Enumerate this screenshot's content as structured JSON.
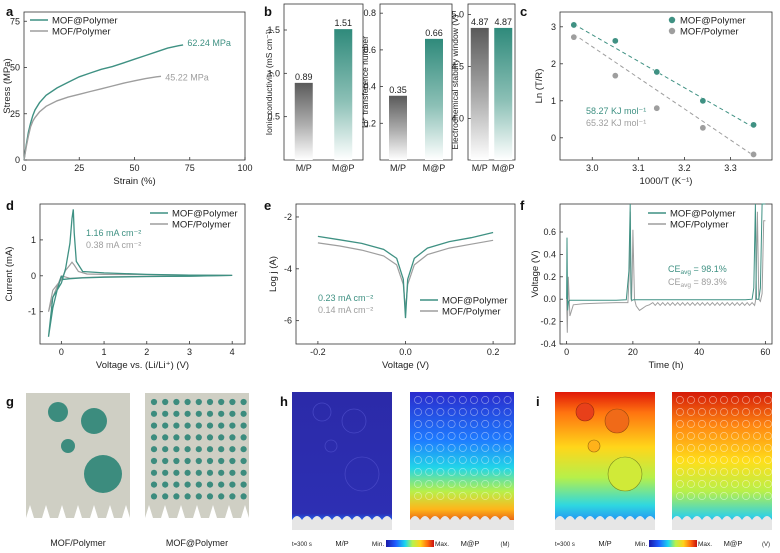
{
  "colors": {
    "teal": "#3f9183",
    "gray": "#9e9e9e",
    "darkgray": "#666666"
  },
  "labels": {
    "a": "a",
    "b": "b",
    "c": "c",
    "d": "d",
    "e": "e",
    "f": "f",
    "g": "g",
    "h": "h",
    "i": "i"
  },
  "chart_data": [
    {
      "id": "a",
      "type": "line",
      "xlabel": "Strain (%)",
      "ylabel": "Stress (MPa)",
      "xlim": [
        0,
        100
      ],
      "ylim": [
        0,
        80
      ],
      "xticks": [
        "0",
        "25",
        "50",
        "75",
        "100"
      ],
      "yticks": [
        "0",
        "25",
        "50",
        "75"
      ],
      "series": [
        {
          "name": "MOF@Polymer",
          "color": "#3f9183",
          "end_label": "62.24 MPa",
          "x": [
            0,
            1,
            2,
            3,
            4,
            5,
            7,
            10,
            15,
            20,
            25,
            30,
            35,
            40,
            45,
            50,
            55,
            60,
            65,
            70,
            72
          ],
          "y": [
            0,
            8,
            15,
            20,
            24,
            27,
            31,
            35,
            39,
            42,
            45,
            47,
            49,
            50.5,
            52.5,
            54.5,
            56.5,
            58.5,
            60.5,
            61.8,
            62.24
          ]
        },
        {
          "name": "MOF/Polymer",
          "color": "#9e9e9e",
          "end_label": "45.22 MPa",
          "x": [
            0,
            1,
            2,
            3,
            4,
            5,
            7,
            10,
            15,
            20,
            25,
            30,
            35,
            40,
            45,
            50,
            55,
            60,
            62
          ],
          "y": [
            0,
            7,
            13,
            18,
            21,
            23,
            26,
            29,
            32,
            34,
            35.5,
            37,
            38.5,
            40,
            41.5,
            42.8,
            44,
            45,
            45.22
          ]
        }
      ]
    },
    {
      "id": "b",
      "type": "bar",
      "categories": [
        "M/P",
        "M@P"
      ],
      "panels": [
        {
          "ylabel": "Ionic conductivity (mS cm⁻¹)",
          "ylim": [
            0,
            1.8
          ],
          "yticks": [
            "0.5",
            "1.0",
            "1.5"
          ],
          "values": [
            0.89,
            1.51
          ],
          "value_labels": [
            "0.89",
            "1.51"
          ]
        },
        {
          "ylabel": "Li⁺ transference number",
          "ylim": [
            0,
            0.85
          ],
          "yticks": [
            "0.2",
            "0.4",
            "0.6",
            "0.8"
          ],
          "values": [
            0.35,
            0.66
          ],
          "value_labels": [
            "0.35",
            "0.66"
          ]
        },
        {
          "ylabel": "Electrochemical stability window (V)",
          "ylim": [
            3.6,
            5.1
          ],
          "yticks": [
            "4.0",
            "4.5",
            "5.0"
          ],
          "values": [
            4.87,
            4.87
          ],
          "value_labels": [
            "4.87",
            "4.87"
          ]
        }
      ]
    },
    {
      "id": "c",
      "type": "scatter",
      "xlabel": "1000/T (K⁻¹)",
      "ylabel": "Ln (T/R)",
      "xlim": [
        2.93,
        3.39
      ],
      "ylim": [
        -0.6,
        3.4
      ],
      "xticks": [
        "3.0",
        "3.1",
        "3.2",
        "3.3"
      ],
      "yticks": [
        "0",
        "1",
        "2",
        "3"
      ],
      "series": [
        {
          "name": "MOF@Polymer",
          "color": "#3f9183",
          "x": [
            2.96,
            3.05,
            3.14,
            3.24,
            3.35
          ],
          "y": [
            3.05,
            2.62,
            1.78,
            1.0,
            0.35
          ],
          "fit": [
            [
              2.96,
              3.07
            ],
            [
              3.35,
              0.28
            ]
          ]
        },
        {
          "name": "MOF/Polymer",
          "color": "#9e9e9e",
          "x": [
            2.96,
            3.05,
            3.14,
            3.24,
            3.35
          ],
          "y": [
            2.72,
            1.68,
            0.8,
            0.27,
            -0.45
          ],
          "fit": [
            [
              2.96,
              2.8
            ],
            [
              3.35,
              -0.48
            ]
          ]
        }
      ],
      "annotations": [
        "58.27 KJ mol⁻¹",
        "65.32 KJ mol⁻¹"
      ]
    },
    {
      "id": "d",
      "type": "line",
      "xlabel": "Voltage vs. (Li/Li⁺) (V)",
      "ylabel": "Current (mA)",
      "xlim": [
        -0.5,
        4.3
      ],
      "ylim": [
        -1.9,
        2.0
      ],
      "xticks": [
        "0",
        "1",
        "2",
        "3",
        "4"
      ],
      "yticks": [
        "-1",
        "0",
        "1"
      ],
      "series": [
        {
          "name": "MOF@Polymer",
          "color": "#3f9183",
          "x": [
            0,
            -0.1,
            -0.2,
            -0.3,
            -0.2,
            0,
            0.1,
            0.2,
            0.25,
            0.28,
            0.3,
            0.35,
            0.5,
            1,
            2,
            3,
            4,
            3,
            2,
            1,
            0.5,
            0.2,
            0.05,
            0
          ],
          "y": [
            0,
            -0.4,
            -0.9,
            -1.7,
            -0.6,
            -0.2,
            0.2,
            0.9,
            1.6,
            1.85,
            1.2,
            0.4,
            0.12,
            0.08,
            0.04,
            0.02,
            0.01,
            -0.01,
            -0.02,
            -0.04,
            -0.06,
            -0.08,
            -0.1,
            0
          ]
        },
        {
          "name": "MOF/Polymer",
          "color": "#9e9e9e",
          "x": [
            0,
            -0.1,
            -0.2,
            -0.3,
            -0.2,
            0,
            0.1,
            0.2,
            0.25,
            0.3,
            0.4,
            0.6,
            1,
            2,
            3,
            4,
            3,
            2,
            1,
            0.5,
            0.2,
            0
          ],
          "y": [
            0,
            -0.3,
            -0.6,
            -1.0,
            -0.4,
            -0.1,
            0.15,
            0.3,
            0.38,
            0.3,
            0.12,
            0.05,
            0.04,
            0.03,
            0.02,
            0.01,
            -0.01,
            -0.02,
            -0.03,
            -0.05,
            -0.07,
            0
          ]
        }
      ],
      "annotations": [
        "1.16 mA cm⁻²",
        "0.38 mA cm⁻²"
      ]
    },
    {
      "id": "e",
      "type": "line",
      "xlabel": "Voltage (V)",
      "ylabel": "Log j (A)",
      "xlim": [
        -0.25,
        0.25
      ],
      "ylim": [
        -6.9,
        -1.5
      ],
      "xticks": [
        "-0.2",
        "0.0",
        "0.2"
      ],
      "yticks": [
        "-2",
        "-4",
        "-6"
      ],
      "series": [
        {
          "name": "MOF@Polymer",
          "color": "#3f9183",
          "x": [
            -0.2,
            -0.15,
            -0.1,
            -0.05,
            -0.02,
            -0.005,
            0,
            0.005,
            0.02,
            0.05,
            0.1,
            0.15,
            0.2
          ],
          "y": [
            -2.75,
            -2.88,
            -3.02,
            -3.25,
            -3.6,
            -4.4,
            -5.9,
            -4.4,
            -3.6,
            -3.2,
            -2.95,
            -2.8,
            -2.6
          ]
        },
        {
          "name": "MOF/Polymer",
          "color": "#9e9e9e",
          "x": [
            -0.2,
            -0.15,
            -0.1,
            -0.05,
            -0.02,
            -0.005,
            0,
            0.005,
            0.02,
            0.05,
            0.1,
            0.15,
            0.2
          ],
          "y": [
            -3.0,
            -3.12,
            -3.28,
            -3.5,
            -3.85,
            -4.6,
            -5.6,
            -4.6,
            -3.85,
            -3.45,
            -3.2,
            -3.05,
            -2.9
          ]
        }
      ],
      "annotations": [
        "0.23 mA cm⁻²",
        "0.14 mA cm⁻²"
      ]
    },
    {
      "id": "f",
      "type": "line",
      "xlabel": "Time (h)",
      "ylabel": "Voltage (V)",
      "xlim": [
        -2,
        62
      ],
      "ylim": [
        -0.4,
        0.85
      ],
      "xticks": [
        "0",
        "20",
        "40",
        "60"
      ],
      "yticks": [
        "-0.4",
        "-0.2",
        "0.0",
        "0.2",
        "0.4",
        "0.6"
      ],
      "series": [
        {
          "name": "MOF@Polymer",
          "color": "#3f9183"
        },
        {
          "name": "MOF/Polymer",
          "color": "#9e9e9e"
        }
      ],
      "annotations": [
        "CE",
        "avg",
        " = 98.1%",
        "CE",
        "avg",
        " = 89.3%"
      ]
    }
  ],
  "schematic": {
    "g_left": "MOF/Polymer",
    "g_right": "MOF@Polymer",
    "h_time": "t=300 s",
    "h_left": "M/P",
    "h_min": "Min.",
    "h_max": "Max.",
    "h_right": "M@P",
    "h_unit": "(M)",
    "i_time": "t=300 s",
    "i_left": "M/P",
    "i_min": "Min.",
    "i_max": "Max.",
    "i_right": "M@P",
    "i_unit": "(V)"
  }
}
